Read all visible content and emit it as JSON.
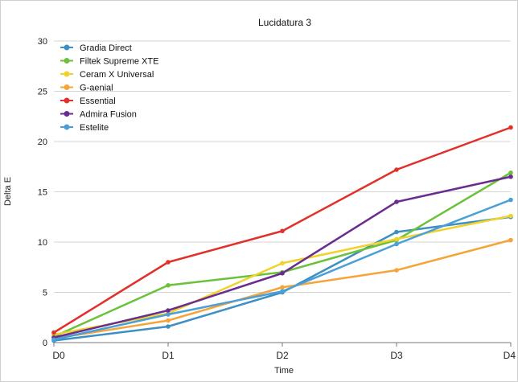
{
  "chart_data": {
    "type": "line",
    "title": "Lucidatura 3",
    "xlabel": "Time",
    "ylabel": "Delta E",
    "categories": [
      "D0",
      "D1",
      "D2",
      "D3",
      "D4"
    ],
    "ylim": [
      0,
      30
    ],
    "yticks": [
      0,
      5,
      10,
      15,
      20,
      25,
      30
    ],
    "grid": "horizontal",
    "legend_position": "top-left",
    "series": [
      {
        "name": "Gradia Direct",
        "color": "#3d8fc4",
        "values": [
          0.2,
          1.6,
          5.0,
          11.0,
          12.5
        ]
      },
      {
        "name": "Filtek Supreme XTE",
        "color": "#6ac23a",
        "values": [
          0.6,
          5.7,
          7.0,
          10.2,
          16.9
        ]
      },
      {
        "name": "Ceram X Universal",
        "color": "#f0d22a",
        "values": [
          0.8,
          2.9,
          7.9,
          10.3,
          12.6
        ]
      },
      {
        "name": "G-aenial",
        "color": "#f5a43a",
        "values": [
          0.4,
          2.2,
          5.5,
          7.2,
          10.2
        ]
      },
      {
        "name": "Essential",
        "color": "#e2302a",
        "values": [
          1.0,
          8.0,
          11.1,
          17.2,
          21.4
        ]
      },
      {
        "name": "Admira Fusion",
        "color": "#6a2c8f",
        "values": [
          0.5,
          3.2,
          6.9,
          14.0,
          16.5
        ]
      },
      {
        "name": "Estelite",
        "color": "#4aa0d6",
        "values": [
          0.3,
          2.8,
          5.1,
          9.8,
          14.2
        ]
      }
    ]
  }
}
